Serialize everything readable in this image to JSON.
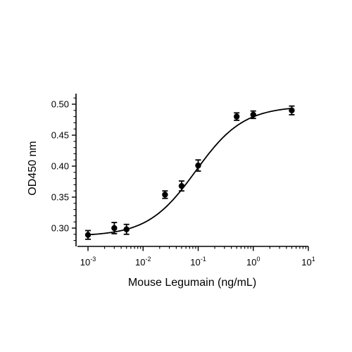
{
  "chart_data": {
    "type": "scatter",
    "title": "",
    "xlabel": "Mouse Legumain (ng/mL)",
    "ylabel": "OD450 nm",
    "x_scale": "log",
    "xlim": [
      0.001,
      10
    ],
    "ylim": [
      0.28,
      0.51
    ],
    "x_ticks": [
      0.001,
      0.01,
      0.1,
      1,
      10
    ],
    "x_tick_labels": [
      {
        "base": "10",
        "exp": "-3"
      },
      {
        "base": "10",
        "exp": "-2"
      },
      {
        "base": "10",
        "exp": "-1"
      },
      {
        "base": "10",
        "exp": "0"
      },
      {
        "base": "10",
        "exp": "1"
      }
    ],
    "y_ticks": [
      0.3,
      0.35,
      0.4,
      0.45,
      0.5
    ],
    "y_tick_labels": [
      "0.30",
      "0.35",
      "0.40",
      "0.45",
      "0.50"
    ],
    "grid": false,
    "legend": "none",
    "series": [
      {
        "points": [
          {
            "x": 0.001,
            "y": 0.289,
            "err": 0.007
          },
          {
            "x": 0.003,
            "y": 0.3,
            "err": 0.009
          },
          {
            "x": 0.005,
            "y": 0.298,
            "err": 0.008
          },
          {
            "x": 0.025,
            "y": 0.354,
            "err": 0.006
          },
          {
            "x": 0.05,
            "y": 0.368,
            "err": 0.008
          },
          {
            "x": 0.1,
            "y": 0.401,
            "err": 0.009
          },
          {
            "x": 0.5,
            "y": 0.48,
            "err": 0.006
          },
          {
            "x": 1.0,
            "y": 0.483,
            "err": 0.006
          },
          {
            "x": 5.0,
            "y": 0.49,
            "err": 0.007
          }
        ],
        "fit": {
          "model": "4PL",
          "bottom": 0.287,
          "top": 0.497,
          "ec50": 0.09,
          "hill": 1.0
        }
      }
    ],
    "colors": {
      "marks": "#000000"
    }
  }
}
